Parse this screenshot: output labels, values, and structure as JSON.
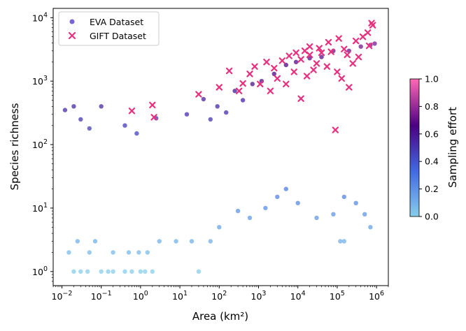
{
  "chart_data": {
    "type": "scatter",
    "title": "",
    "xlabel": "Area (km²)",
    "ylabel": "Species richness",
    "xscale": "log",
    "yscale": "log",
    "xlim": [
      0.006,
      2000000
    ],
    "ylim": [
      0.6,
      14000
    ],
    "x_ticks": [
      {
        "value": 0.01,
        "base": "10",
        "exp": "−2"
      },
      {
        "value": 0.1,
        "base": "10",
        "exp": "−1"
      },
      {
        "value": 1,
        "base": "10",
        "exp": "0"
      },
      {
        "value": 10,
        "base": "10",
        "exp": "1"
      },
      {
        "value": 100,
        "base": "10",
        "exp": "2"
      },
      {
        "value": 1000,
        "base": "10",
        "exp": "3"
      },
      {
        "value": 10000,
        "base": "10",
        "exp": "4"
      },
      {
        "value": 100000,
        "base": "10",
        "exp": "5"
      },
      {
        "value": 1000000,
        "base": "10",
        "exp": "6"
      }
    ],
    "y_ticks": [
      {
        "value": 1,
        "base": "10",
        "exp": "0"
      },
      {
        "value": 10,
        "base": "10",
        "exp": "1"
      },
      {
        "value": 100,
        "base": "10",
        "exp": "2"
      },
      {
        "value": 1000,
        "base": "10",
        "exp": "3"
      },
      {
        "value": 10000,
        "base": "10",
        "exp": "4"
      }
    ],
    "legend": {
      "position": "upper-left",
      "entries": [
        {
          "label": "EVA Dataset",
          "marker": "circle"
        },
        {
          "label": "GIFT Dataset",
          "marker": "x"
        }
      ]
    },
    "colorbar": {
      "label": "Sampling effort",
      "range": [
        0.0,
        1.0
      ],
      "ticks": [
        "0.0",
        "0.2",
        "0.4",
        "0.6",
        "0.8",
        "1.0"
      ],
      "colors": [
        "#87ceeb",
        "#4169e1",
        "#4b0082",
        "#ff69b4"
      ]
    },
    "series": [
      {
        "name": "EVA Dataset",
        "marker": "circle",
        "points": [
          [
            0.02,
            1
          ],
          [
            0.03,
            1
          ],
          [
            0.045,
            1
          ],
          [
            0.1,
            1
          ],
          [
            0.15,
            1
          ],
          [
            0.2,
            1
          ],
          [
            0.4,
            1
          ],
          [
            0.6,
            1
          ],
          [
            1.0,
            1
          ],
          [
            1.3,
            1
          ],
          [
            2.0,
            1
          ],
          [
            30,
            1
          ],
          [
            0.015,
            2
          ],
          [
            0.025,
            3
          ],
          [
            0.05,
            2
          ],
          [
            0.07,
            3
          ],
          [
            0.2,
            2
          ],
          [
            0.5,
            2
          ],
          [
            0.9,
            2
          ],
          [
            1.5,
            2
          ],
          [
            3,
            3
          ],
          [
            8,
            3
          ],
          [
            20,
            3
          ],
          [
            60,
            3
          ],
          [
            150000,
            3
          ],
          [
            120000,
            3
          ],
          [
            0.012,
            350
          ],
          [
            0.02,
            400
          ],
          [
            0.03,
            250
          ],
          [
            0.1,
            400
          ],
          [
            0.05,
            180
          ],
          [
            0.4,
            200
          ],
          [
            0.8,
            150
          ],
          [
            2.5,
            260
          ],
          [
            15,
            300
          ],
          [
            40,
            520
          ],
          [
            60,
            250
          ],
          [
            90,
            400
          ],
          [
            150,
            320
          ],
          [
            250,
            700
          ],
          [
            400,
            500
          ],
          [
            700,
            900
          ],
          [
            1200,
            1000
          ],
          [
            2500,
            1300
          ],
          [
            5000,
            1800
          ],
          [
            9000,
            2000
          ],
          [
            20000,
            2300
          ],
          [
            40000,
            2400
          ],
          [
            80000,
            3000
          ],
          [
            200000,
            3000
          ],
          [
            400000,
            3500
          ],
          [
            700000,
            3700
          ],
          [
            900000,
            3900
          ],
          [
            500000,
            8
          ],
          [
            700000,
            5
          ],
          [
            300000,
            12
          ],
          [
            150000,
            15
          ],
          [
            80000,
            8
          ],
          [
            30000,
            7
          ],
          [
            10000,
            12
          ],
          [
            5000,
            20
          ],
          [
            3000,
            15
          ],
          [
            1500,
            10
          ],
          [
            600,
            7
          ],
          [
            300,
            9
          ],
          [
            100,
            5
          ]
        ]
      },
      {
        "name": "GIFT Dataset",
        "marker": "x",
        "points": [
          [
            0.6,
            340
          ],
          [
            2.0,
            420
          ],
          [
            2.2,
            270
          ],
          [
            30,
            620
          ],
          [
            100,
            800
          ],
          [
            180,
            1450
          ],
          [
            320,
            700
          ],
          [
            400,
            920
          ],
          [
            600,
            1300
          ],
          [
            800,
            1700
          ],
          [
            1100,
            900
          ],
          [
            1600,
            2000
          ],
          [
            2500,
            1600
          ],
          [
            4000,
            2100
          ],
          [
            6000,
            2500
          ],
          [
            9000,
            2800
          ],
          [
            12000,
            2200
          ],
          [
            15000,
            3000
          ],
          [
            20000,
            2600
          ],
          [
            25000,
            1500
          ],
          [
            30000,
            1900
          ],
          [
            40000,
            2800
          ],
          [
            55000,
            1700
          ],
          [
            70000,
            2900
          ],
          [
            90000,
            170
          ],
          [
            110000,
            4700
          ],
          [
            150000,
            3200
          ],
          [
            200000,
            800
          ],
          [
            300000,
            4300
          ],
          [
            450000,
            5000
          ],
          [
            600000,
            5800
          ],
          [
            750000,
            8200
          ],
          [
            800000,
            7600
          ],
          [
            650000,
            3600
          ],
          [
            350000,
            2400
          ],
          [
            250000,
            1900
          ],
          [
            180000,
            2600
          ],
          [
            130000,
            1100
          ],
          [
            100000,
            1400
          ],
          [
            12000,
            530
          ],
          [
            17000,
            1200
          ],
          [
            8000,
            1400
          ],
          [
            5000,
            900
          ],
          [
            3000,
            1100
          ],
          [
            2000,
            700
          ],
          [
            20000,
            3500
          ],
          [
            35000,
            3300
          ],
          [
            60000,
            4100
          ]
        ]
      }
    ]
  }
}
